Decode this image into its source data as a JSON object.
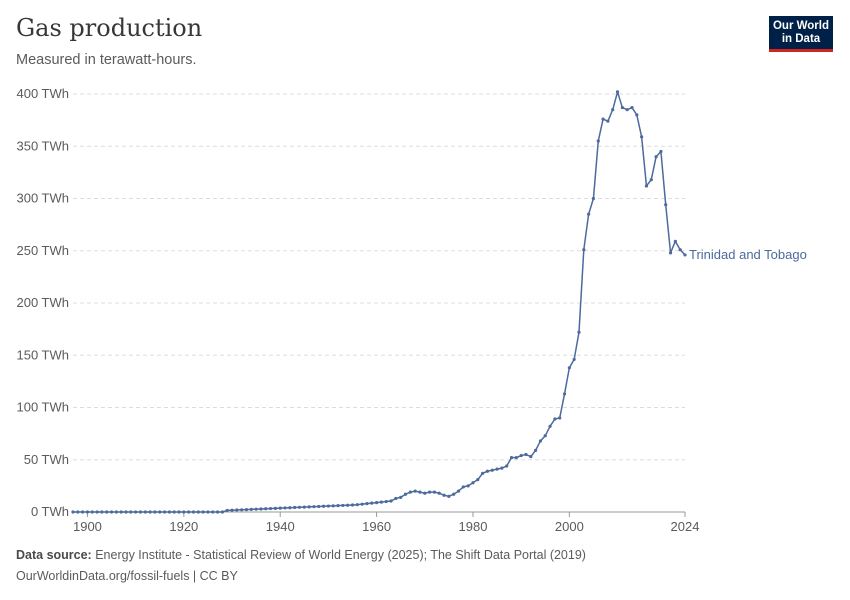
{
  "header": {
    "title": "Gas production",
    "subtitle": "Measured in terawatt-hours."
  },
  "logo": {
    "line1": "Our World",
    "line2": "in Data"
  },
  "footer": {
    "source_label": "Data source:",
    "source_text": "Energy Institute - Statistical Review of World Energy (2025); The Shift Data Portal (2019)",
    "url_license": "OurWorldinData.org/fossil-fuels | CC BY"
  },
  "colors": {
    "series": "#4c6a9c",
    "grid": "#dddddd",
    "axis": "#999999"
  },
  "chart_data": {
    "type": "line",
    "title": "Gas production",
    "subtitle": "Measured in terawatt-hours.",
    "xlabel": "",
    "ylabel": "",
    "xlim": [
      1897,
      2024
    ],
    "ylim": [
      0,
      400
    ],
    "x_ticks": [
      1900,
      1920,
      1940,
      1960,
      1980,
      2000,
      2024
    ],
    "y_ticks": [
      0,
      50,
      100,
      150,
      200,
      250,
      300,
      350,
      400
    ],
    "y_tick_labels": [
      "0 TWh",
      "50 TWh",
      "100 TWh",
      "150 TWh",
      "200 TWh",
      "250 TWh",
      "300 TWh",
      "350 TWh",
      "400 TWh"
    ],
    "grid": true,
    "series": [
      {
        "name": "Trinidad and Tobago",
        "x": [
          1897,
          1898,
          1899,
          1900,
          1901,
          1902,
          1903,
          1904,
          1905,
          1906,
          1907,
          1908,
          1909,
          1910,
          1911,
          1912,
          1913,
          1914,
          1915,
          1916,
          1917,
          1918,
          1919,
          1920,
          1921,
          1922,
          1923,
          1924,
          1925,
          1926,
          1927,
          1928,
          1929,
          1930,
          1931,
          1932,
          1933,
          1934,
          1935,
          1936,
          1937,
          1938,
          1939,
          1940,
          1941,
          1942,
          1943,
          1944,
          1945,
          1946,
          1947,
          1948,
          1949,
          1950,
          1951,
          1952,
          1953,
          1954,
          1955,
          1956,
          1957,
          1958,
          1959,
          1960,
          1961,
          1962,
          1963,
          1964,
          1965,
          1966,
          1967,
          1968,
          1969,
          1970,
          1971,
          1972,
          1973,
          1974,
          1975,
          1976,
          1977,
          1978,
          1979,
          1980,
          1981,
          1982,
          1983,
          1984,
          1985,
          1986,
          1987,
          1988,
          1989,
          1990,
          1991,
          1992,
          1993,
          1994,
          1995,
          1996,
          1997,
          1998,
          1999,
          2000,
          2001,
          2002,
          2003,
          2004,
          2005,
          2006,
          2007,
          2008,
          2009,
          2010,
          2011,
          2012,
          2013,
          2014,
          2015,
          2016,
          2017,
          2018,
          2019,
          2020,
          2021,
          2022,
          2023,
          2024
        ],
        "y": [
          0,
          0,
          0,
          0,
          0,
          0,
          0,
          0,
          0,
          0,
          0,
          0,
          0,
          0,
          0,
          0,
          0,
          0,
          0,
          0,
          0,
          0,
          0,
          0,
          0,
          0,
          0,
          0,
          0,
          0,
          0,
          0,
          1.5,
          1.7,
          1.9,
          2.1,
          2.3,
          2.5,
          2.7,
          2.9,
          3.1,
          3.3,
          3.5,
          3.7,
          3.9,
          4.1,
          4.3,
          4.5,
          4.7,
          4.9,
          5.1,
          5.3,
          5.5,
          5.7,
          5.9,
          6.1,
          6.3,
          6.5,
          6.7,
          7,
          7.5,
          8,
          8.5,
          9,
          9.5,
          10,
          10.5,
          13,
          14,
          17,
          19,
          20,
          19,
          18,
          19,
          19,
          18,
          16,
          15,
          17,
          20,
          24,
          25,
          28,
          31,
          37,
          39,
          40,
          41,
          42,
          44,
          52,
          52,
          54,
          55,
          53,
          59,
          68,
          73,
          82,
          89,
          90,
          113,
          138,
          146,
          172,
          251,
          285,
          300,
          355,
          376,
          374,
          385,
          402,
          387,
          385,
          387,
          380,
          359,
          312,
          318,
          340,
          345,
          294,
          248,
          259,
          251,
          246
        ]
      }
    ]
  }
}
